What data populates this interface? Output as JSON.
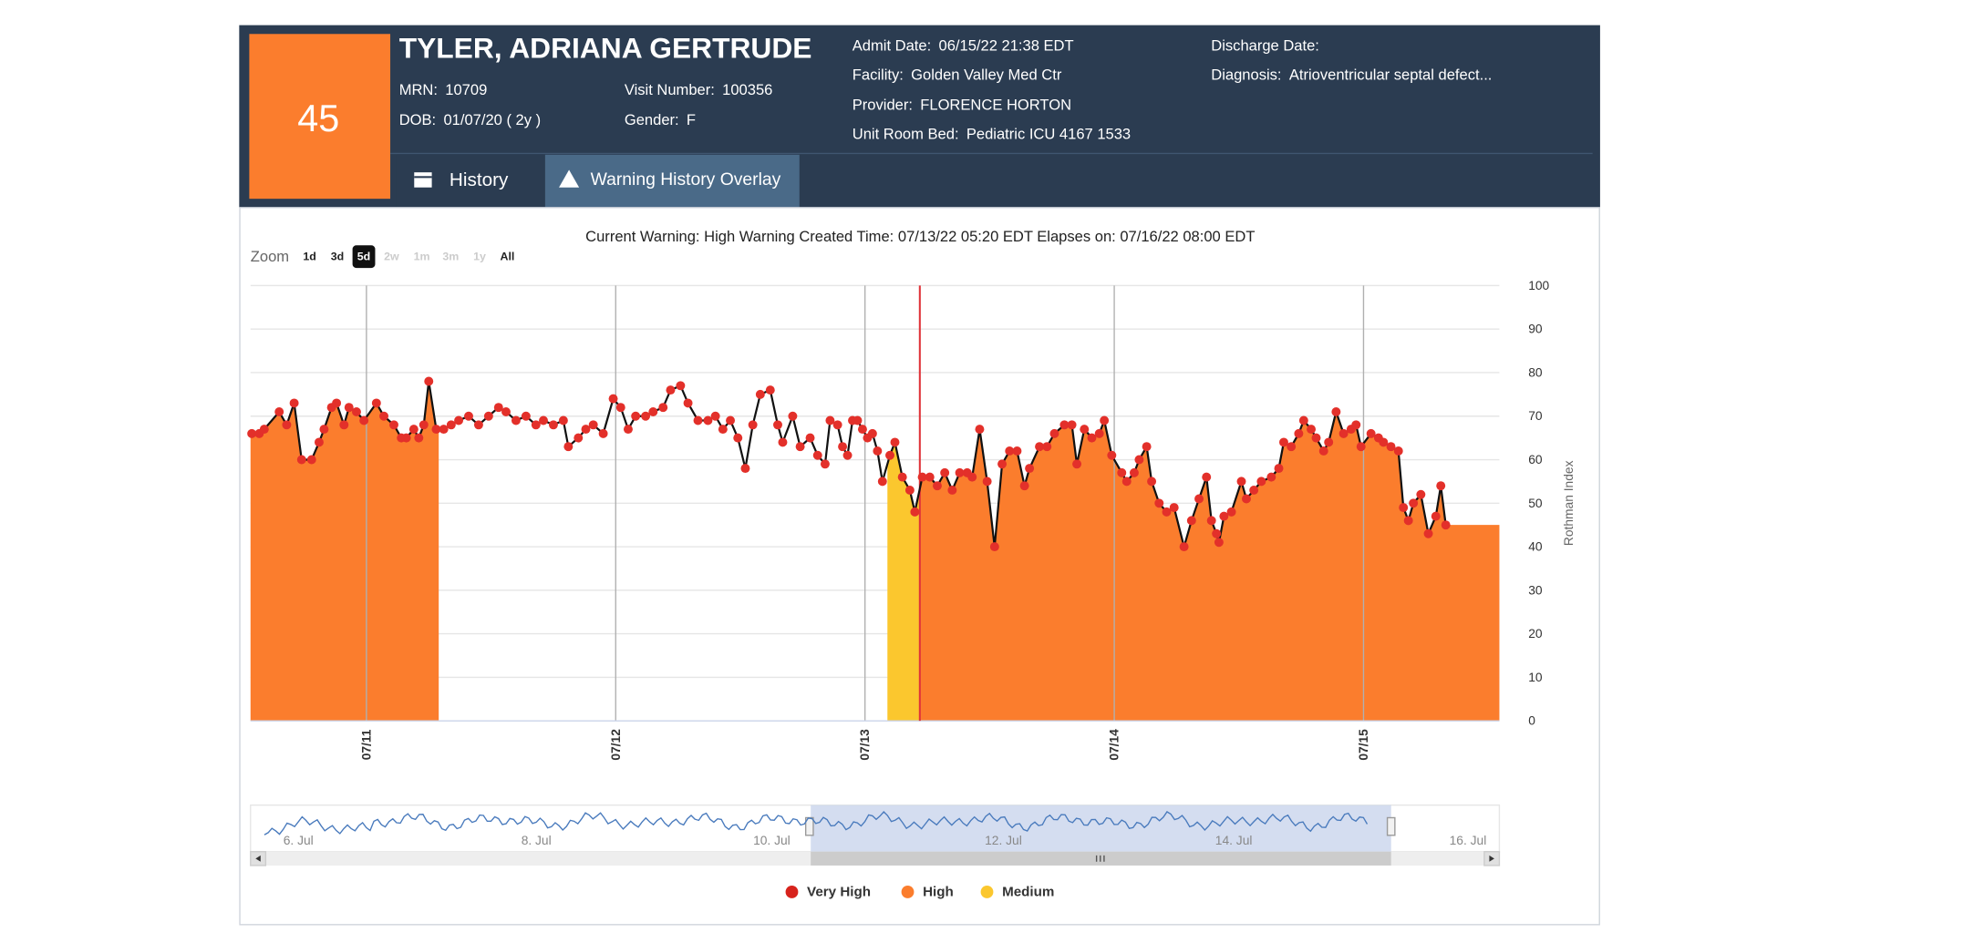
{
  "header": {
    "score": "45",
    "name": "TYLER, ADRIANA GERTRUDE",
    "fields": [
      {
        "label": "MRN:",
        "value": "10709"
      },
      {
        "label": "DOB:",
        "value": "01/07/20 ( 2y )"
      },
      {
        "label": "Visit Number:",
        "value": "100356"
      },
      {
        "label": "Gender:",
        "value": "F"
      },
      {
        "label": "Admit Date:",
        "value": "06/15/22 21:38 EDT"
      },
      {
        "label": "Facility:",
        "value": "Golden Valley Med Ctr"
      },
      {
        "label": "Provider:",
        "value": "FLORENCE HORTON"
      },
      {
        "label": "Unit Room Bed:",
        "value": "Pediatric ICU 4167 1533"
      },
      {
        "label": "Discharge Date:"
      },
      {
        "label": "Diagnosis:",
        "value": "Atrioventricular septal defect..."
      }
    ]
  },
  "tabs": [
    "History",
    "Warning History Overlay"
  ],
  "chart_data": {
    "type": "line",
    "title": "Current Warning: High Warning Created Time: 07/13/22 05:20 EDT Elapses on: 07/16/22 08:00 EDT",
    "zoom": {
      "label": "Zoom",
      "buttons": [
        "1d",
        "3d",
        "5d",
        "2w",
        "1m",
        "3m",
        "1y",
        "All"
      ],
      "selected": 2,
      "disabled": [
        3,
        4,
        5,
        6
      ]
    },
    "y_axis_label": "Rothman Index",
    "line_color": "#111111",
    "marker_color": "#e3302a",
    "x": [
      10.54,
      10.57,
      10.59,
      10.65,
      10.68,
      10.71,
      10.74,
      10.78,
      10.81,
      10.83,
      10.86,
      10.88,
      10.91,
      10.93,
      10.96,
      10.99,
      11.04,
      11.07,
      11.11,
      11.14,
      11.16,
      11.19,
      11.21,
      11.23,
      11.25,
      11.28,
      11.31,
      11.34,
      11.37,
      11.41,
      11.45,
      11.49,
      11.53,
      11.56,
      11.6,
      11.64,
      11.68,
      11.71,
      11.75,
      11.79,
      11.81,
      11.85,
      11.88,
      11.91,
      11.95,
      11.99,
      12.02,
      12.05,
      12.08,
      12.12,
      12.15,
      12.19,
      12.22,
      12.26,
      12.29,
      12.33,
      12.37,
      12.4,
      12.43,
      12.46,
      12.49,
      12.52,
      12.55,
      12.58,
      12.62,
      12.65,
      12.67,
      12.71,
      12.74,
      12.78,
      12.81,
      12.84,
      12.86,
      12.89,
      12.91,
      12.93,
      12.95,
      12.97,
      12.99,
      13.01,
      13.03,
      13.05,
      13.07,
      13.1,
      13.12,
      13.15,
      13.18,
      13.2,
      13.23,
      13.26,
      13.29,
      13.32,
      13.35,
      13.38,
      13.41,
      13.43,
      13.46,
      13.49,
      13.52,
      13.55,
      13.58,
      13.61,
      13.64,
      13.66,
      13.7,
      13.73,
      13.76,
      13.8,
      13.83,
      13.85,
      13.88,
      13.91,
      13.94,
      13.96,
      13.99,
      14.03,
      14.05,
      14.08,
      14.1,
      14.13,
      14.15,
      14.18,
      14.21,
      14.24,
      14.28,
      14.31,
      14.34,
      14.37,
      14.39,
      14.41,
      14.42,
      14.44,
      14.47,
      14.51,
      14.53,
      14.56,
      14.59,
      14.63,
      14.66,
      14.68,
      14.71,
      14.74,
      14.76,
      14.79,
      14.81,
      14.84,
      14.86,
      14.89,
      14.92,
      14.95,
      14.97,
      14.99,
      15.03,
      15.06,
      15.08,
      15.11,
      15.14,
      15.16,
      15.18,
      15.2,
      15.23,
      15.26,
      15.29,
      15.31,
      15.33
    ],
    "values": [
      66,
      66,
      67,
      71,
      68,
      73,
      60,
      60,
      64,
      67,
      72,
      73,
      68,
      72,
      71,
      69,
      73,
      70,
      68,
      65,
      65,
      67,
      65,
      68,
      78,
      67,
      67,
      68,
      69,
      70,
      68,
      70,
      72,
      71,
      69,
      70,
      68,
      69,
      68,
      69,
      63,
      65,
      67,
      68,
      66,
      74,
      72,
      67,
      70,
      70,
      71,
      72,
      76,
      77,
      73,
      69,
      69,
      70,
      67,
      69,
      65,
      58,
      68,
      75,
      76,
      68,
      64,
      70,
      63,
      65,
      61,
      59,
      69,
      68,
      63,
      61,
      69,
      69,
      67,
      65,
      66,
      62,
      55,
      61,
      64,
      56,
      53,
      48,
      56,
      56,
      54,
      57,
      53,
      57,
      57,
      56,
      67,
      55,
      40,
      59,
      62,
      62,
      54,
      58,
      63,
      63,
      66,
      68,
      68,
      59,
      67,
      65,
      66,
      69,
      61,
      57,
      55,
      57,
      60,
      63,
      55,
      50,
      48,
      49,
      40,
      46,
      51,
      56,
      46,
      43,
      41,
      47,
      48,
      55,
      51,
      53,
      55,
      56,
      58,
      64,
      63,
      66,
      69,
      67,
      65,
      62,
      64,
      71,
      66,
      67,
      68,
      63,
      66,
      65,
      64,
      63,
      62,
      49,
      46,
      50,
      52,
      43,
      47,
      54,
      45
    ],
    "xlim": [
      10.535,
      15.545
    ],
    "xticks": [
      {
        "value": 11,
        "label": "07/11"
      },
      {
        "value": 12,
        "label": "07/12"
      },
      {
        "value": 13,
        "label": "07/13"
      },
      {
        "value": 14,
        "label": "07/14"
      },
      {
        "value": 15,
        "label": "07/15"
      }
    ],
    "ylim": [
      0,
      100
    ],
    "yticks": [
      0,
      10,
      20,
      30,
      40,
      50,
      60,
      70,
      80,
      90,
      100
    ],
    "grid": true,
    "current_warning_x": 13.22,
    "current_warning_color": "#e0343a",
    "bands": [
      {
        "start": 10.535,
        "end": 11.29,
        "color": "#fb7d2d"
      },
      {
        "start": 13.09,
        "end": 13.22,
        "color": "#fbc72e"
      },
      {
        "start": 13.22,
        "end": 15.545,
        "color": "#fb7d2d"
      }
    ],
    "navigator_labels": [
      "6. Jul",
      "8. Jul",
      "10. Jul",
      "12. Jul",
      "14. Jul",
      "16. Jul"
    ],
    "legend": [
      {
        "name": "Very High",
        "color": "#d7231c"
      },
      {
        "name": "High",
        "color": "#fb7d2d"
      },
      {
        "name": "Medium",
        "color": "#fbc72e"
      }
    ]
  }
}
